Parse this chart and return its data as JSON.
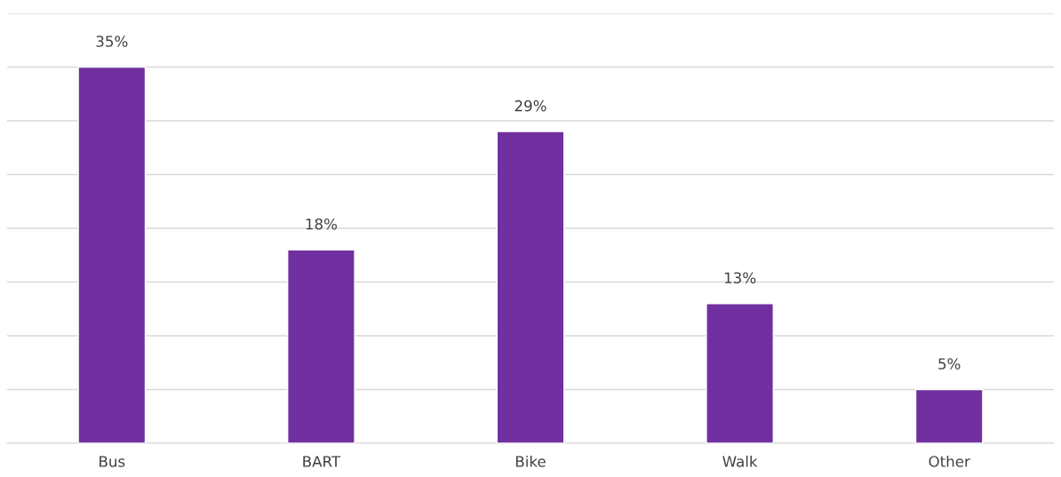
{
  "chart_data": {
    "type": "bar",
    "categories": [
      "Bus",
      "BART",
      "Bike",
      "Walk",
      "Other"
    ],
    "values": [
      35,
      18,
      29,
      13,
      5
    ],
    "value_labels": [
      "35%",
      "18%",
      "29%",
      "13%",
      "5%"
    ],
    "color": "#7030a0",
    "ylim": [
      0,
      40
    ],
    "yticks": [
      {
        "value": 0,
        "label": null
      },
      {
        "value": 5,
        "label": null
      },
      {
        "value": 10,
        "label": null
      },
      {
        "value": 15,
        "label": null
      },
      {
        "value": 20,
        "label": null
      },
      {
        "value": 25,
        "label": null
      },
      {
        "value": 30,
        "label": null
      },
      {
        "value": 35,
        "label": null
      },
      {
        "value": 40,
        "label": null
      }
    ],
    "grid": "y",
    "tick_labels": "x"
  }
}
